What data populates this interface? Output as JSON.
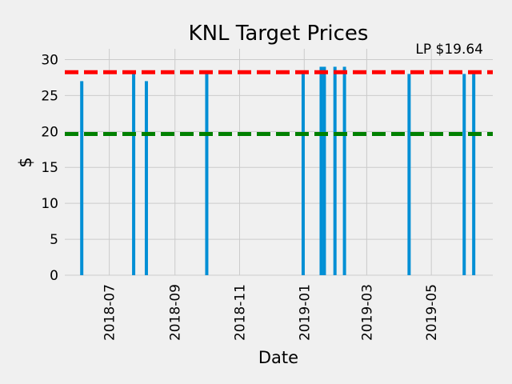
{
  "chart_data": {
    "type": "bar",
    "title": "KNL Target Prices",
    "annotation": "LP $19.64",
    "xlabel": "Date",
    "ylabel": "$",
    "xlim": [
      "2018-05-20",
      "2019-06-28"
    ],
    "ylim": [
      0,
      31.5
    ],
    "grid": true,
    "x_ticks": [
      "2018-07",
      "2018-09",
      "2018-11",
      "2019-01",
      "2019-03",
      "2019-05"
    ],
    "y_ticks": [
      0,
      5,
      10,
      15,
      20,
      25,
      30
    ],
    "bars": [
      {
        "date": "2018-06-05",
        "value": 27
      },
      {
        "date": "2018-07-24",
        "value": 28
      },
      {
        "date": "2018-08-05",
        "value": 27
      },
      {
        "date": "2018-10-01",
        "value": 28
      },
      {
        "date": "2018-12-31",
        "value": 28
      },
      {
        "date": "2019-01-17",
        "value": 29
      },
      {
        "date": "2019-01-20",
        "value": 29
      },
      {
        "date": "2019-01-30",
        "value": 29
      },
      {
        "date": "2019-02-08",
        "value": 29
      },
      {
        "date": "2019-04-10",
        "value": 28
      },
      {
        "date": "2019-06-01",
        "value": 28
      },
      {
        "date": "2019-06-10",
        "value": 28
      }
    ],
    "reference_lines": [
      {
        "name": "target-average",
        "value": 28.25,
        "color": "#ff0000",
        "style": "dashed"
      },
      {
        "name": "last-price",
        "value": 19.64,
        "color": "#008000",
        "style": "dashed"
      }
    ],
    "bar_color": "#008fd5"
  }
}
